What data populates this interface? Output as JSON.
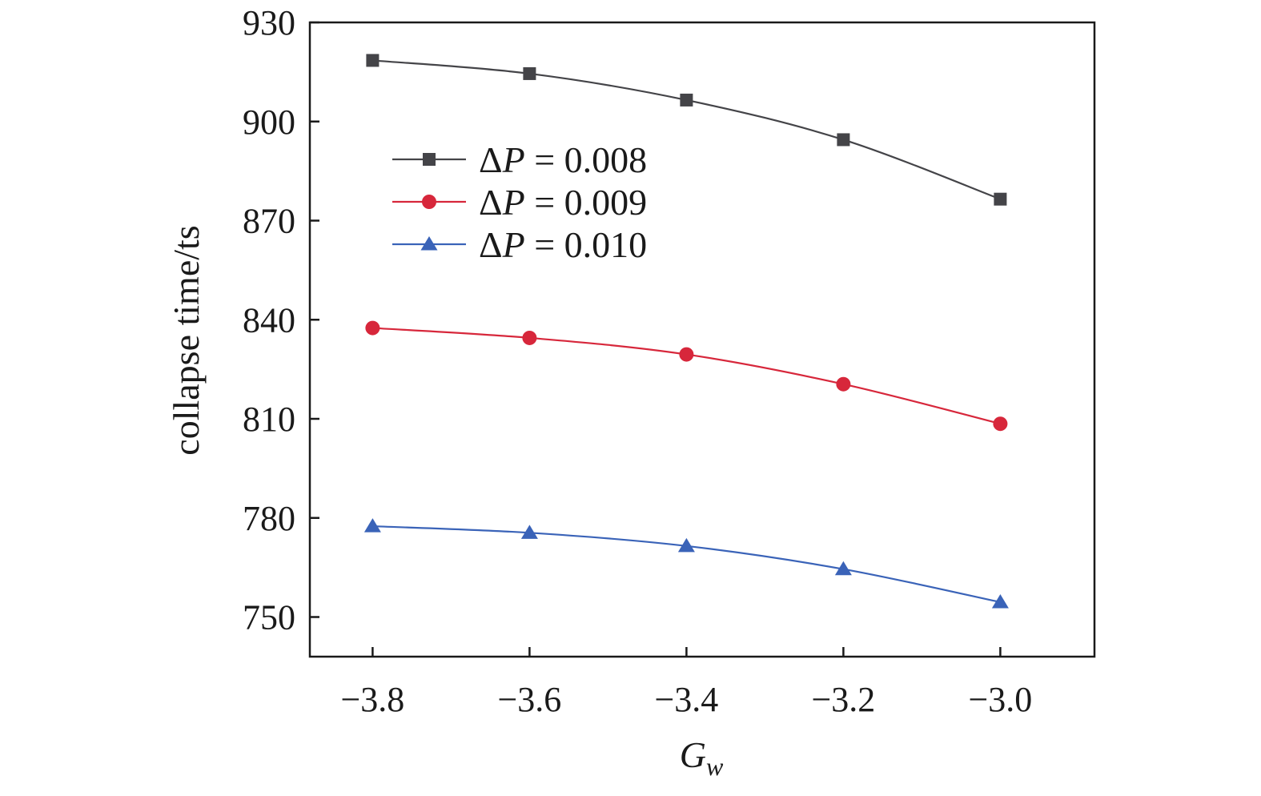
{
  "chart_data": {
    "type": "line",
    "title": "",
    "xlabel": "G",
    "xlabel_subscript": "w",
    "ylabel": "collapse time/ts",
    "xlim": [
      -3.88,
      -2.88
    ],
    "ylim": [
      738,
      930
    ],
    "x": [
      -3.8,
      -3.6,
      -3.4,
      -3.2,
      -3.0
    ],
    "x_tick_labels": [
      "−3.8",
      "−3.6",
      "−3.4",
      "−3.2",
      "−3.0"
    ],
    "y_ticks": [
      750,
      780,
      810,
      840,
      870,
      900,
      930
    ],
    "y_tick_labels": [
      "750",
      "780",
      "810",
      "840",
      "870",
      "900",
      "930"
    ],
    "grid": false,
    "legend_position": "upper-left",
    "series": [
      {
        "name": "ΔP = 0.008",
        "legend_prefix": "Δ",
        "legend_var": "P",
        "legend_suffix": " = 0.008",
        "marker": "square",
        "color": "#444448",
        "values": [
          918.5,
          914.5,
          906.5,
          894.5,
          876.5
        ]
      },
      {
        "name": "ΔP = 0.009",
        "legend_prefix": "Δ",
        "legend_var": "P",
        "legend_suffix": " = 0.009",
        "marker": "circle",
        "color": "#d7273b",
        "values": [
          837.5,
          834.5,
          829.5,
          820.5,
          808.5
        ]
      },
      {
        "name": "ΔP = 0.010",
        "legend_prefix": "Δ",
        "legend_var": "P",
        "legend_suffix": " = 0.010",
        "marker": "triangle",
        "color": "#3a63b8",
        "values": [
          777.5,
          775.5,
          771.5,
          764.5,
          754.5
        ]
      }
    ]
  }
}
